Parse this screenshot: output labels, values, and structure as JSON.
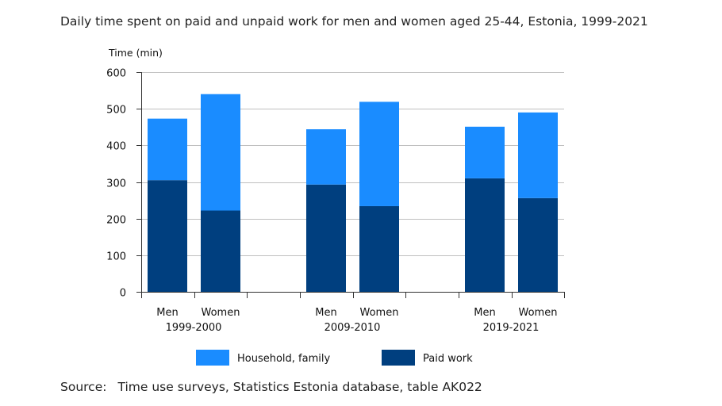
{
  "title": "Daily time spent on paid and unpaid work for men and women aged 25-44, Estonia, 1999-2021",
  "source": {
    "label": "Source:",
    "text": "Time use surveys, Statistics Estonia database, table AK022"
  },
  "colors": {
    "household": "#1a8cff",
    "paid": "#003f7f",
    "grid": "#bfbfbf",
    "axis": "#333333"
  },
  "chart_data": {
    "type": "bar",
    "stacked": true,
    "ylabel": "Time (min)",
    "ylim": [
      0,
      600
    ],
    "yticks": [
      0,
      100,
      200,
      300,
      400,
      500,
      600
    ],
    "grid": true,
    "legend_position": "bottom",
    "groups": [
      {
        "label": "1999-2000",
        "categories": [
          "Men",
          "Women"
        ]
      },
      {
        "label": "2009-2010",
        "categories": [
          "Men",
          "Women"
        ]
      },
      {
        "label": "2019-2021",
        "categories": [
          "Men",
          "Women"
        ]
      }
    ],
    "series": [
      {
        "name": "Paid work",
        "color": "#003f7f",
        "values": [
          305,
          222,
          293,
          234,
          310,
          256
        ]
      },
      {
        "name": "Household, family",
        "color": "#1a8cff",
        "values": [
          168,
          318,
          151,
          285,
          141,
          234
        ]
      }
    ],
    "legend": [
      "Household, family",
      "Paid work"
    ]
  }
}
